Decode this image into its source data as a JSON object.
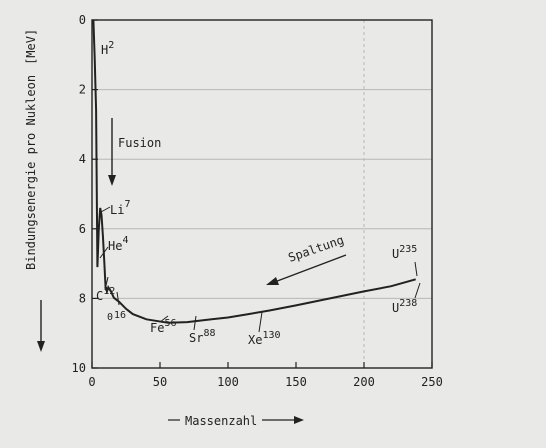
{
  "chart_data": {
    "type": "line",
    "ylabel": "Bindungsenergie pro Nukleon",
    "yunit": "[MeV]",
    "xlabel": "Massenzahl",
    "xlim": [
      0,
      250
    ],
    "ylim": [
      0,
      10
    ],
    "y_inverted": true,
    "grid": true,
    "x_ticks": [
      "0",
      "50",
      "100",
      "150",
      "200",
      "250"
    ],
    "y_ticks": [
      "0",
      "2",
      "4",
      "6",
      "8",
      "10"
    ],
    "x": [
      1,
      2,
      3,
      4,
      5,
      6,
      7,
      8,
      9,
      10,
      11,
      12,
      14,
      16,
      20,
      25,
      30,
      40,
      56,
      70,
      88,
      100,
      115,
      130,
      150,
      175,
      200,
      220,
      238
    ],
    "y": [
      0.0,
      1.1,
      2.6,
      7.1,
      6.0,
      5.4,
      5.6,
      6.2,
      6.9,
      7.7,
      7.8,
      7.68,
      7.8,
      7.98,
      8.1,
      8.3,
      8.45,
      8.6,
      8.7,
      8.68,
      8.6,
      8.55,
      8.45,
      8.35,
      8.2,
      8.0,
      7.8,
      7.65,
      7.45
    ],
    "annotations": {
      "h2": {
        "sym": "H",
        "mass": "2"
      },
      "li7": {
        "sym": "Li",
        "mass": "7"
      },
      "he4": {
        "sym": "He",
        "mass": "4"
      },
      "c12": {
        "sym": "C",
        "mass": "12"
      },
      "o16": {
        "sym": "O",
        "mass": "16"
      },
      "fe56": {
        "sym": "Fe",
        "mass": "56"
      },
      "sr88": {
        "sym": "Sr",
        "mass": "88"
      },
      "xe130": {
        "sym": "Xe",
        "mass": "130"
      },
      "u235": {
        "sym": "U",
        "mass": "235"
      },
      "u238": {
        "sym": "U",
        "mass": "238"
      }
    },
    "fusion_label": "Fusion",
    "spaltung_label": "Spaltung",
    "colors": {
      "paper": "#e9e9e7",
      "ink": "#222222",
      "grid": "#b8b8b4"
    }
  }
}
